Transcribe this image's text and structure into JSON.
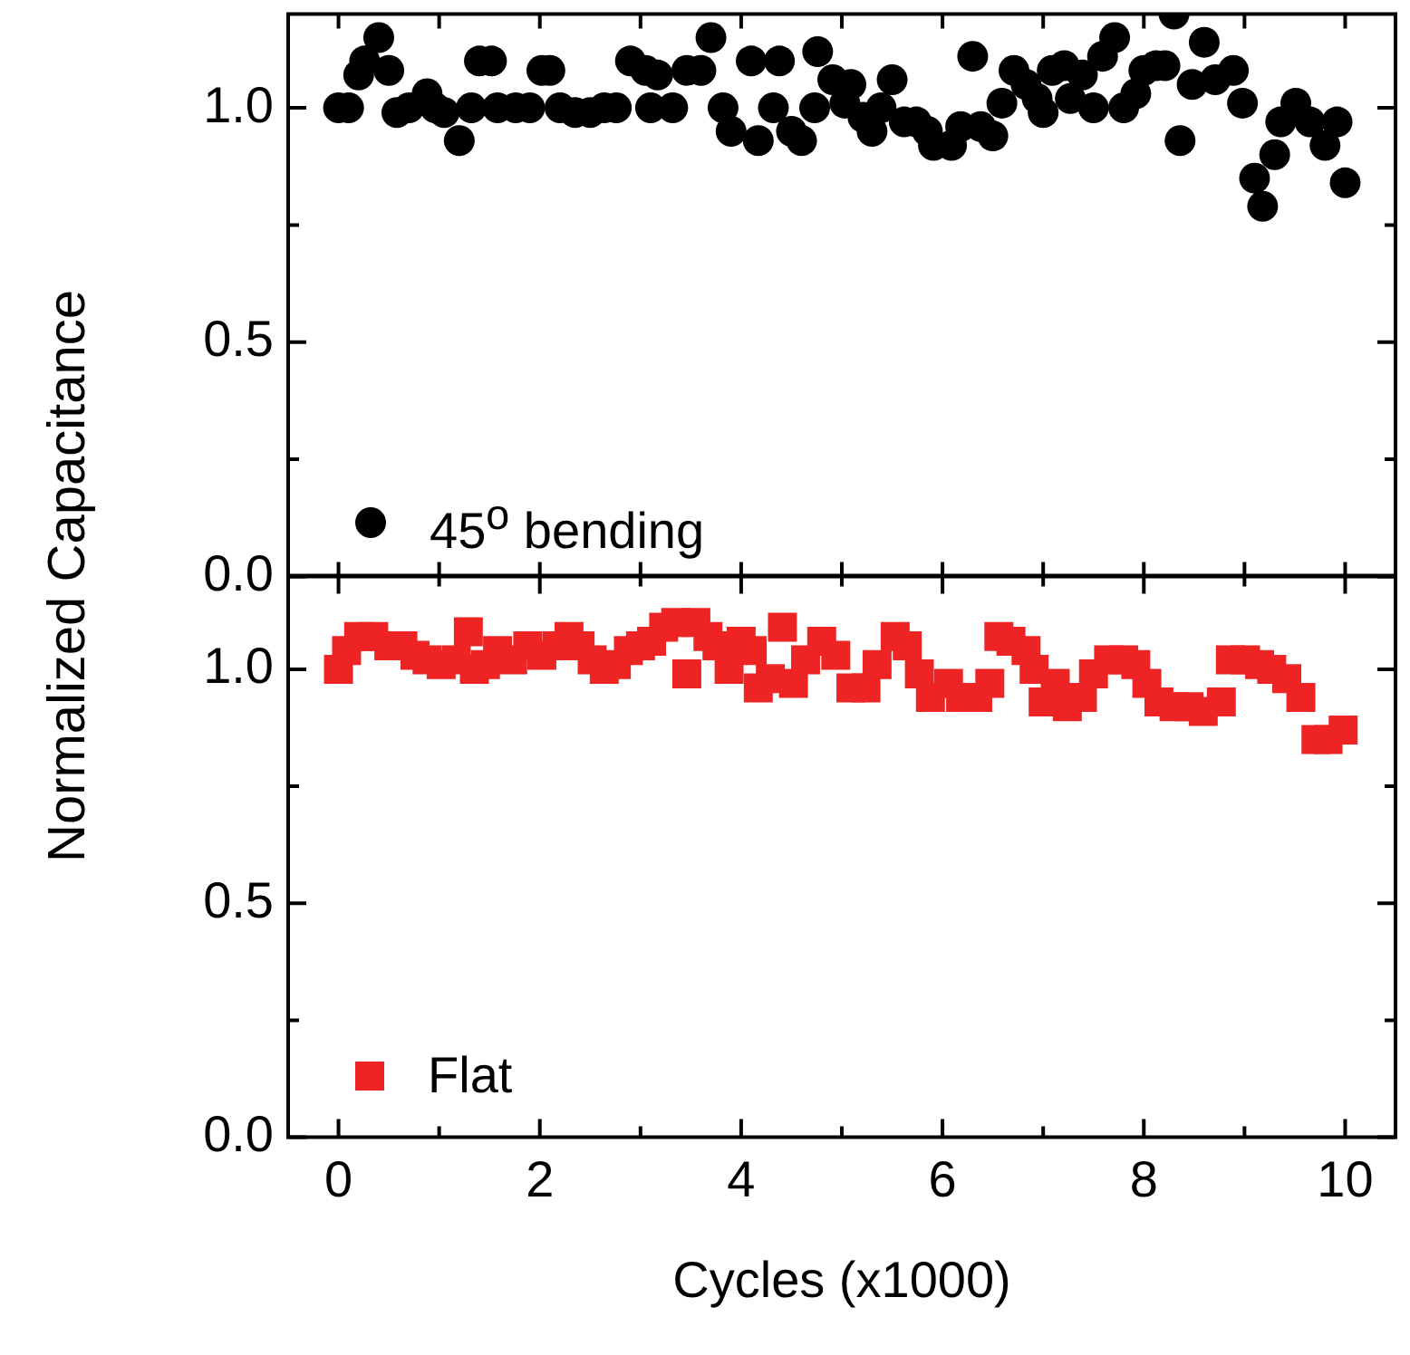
{
  "chart_data": [
    {
      "type": "scatter",
      "ylabel": "Normalized Capacitance",
      "marker": "circle",
      "legend": "bottom left",
      "tick_labels": "y",
      "xlim": [
        -0.5,
        10.5
      ],
      "ylim": [
        0,
        1.2
      ],
      "xticks": [
        {
          "value": 0,
          "label": null
        },
        {
          "value": 1,
          "label": null
        },
        {
          "value": 2,
          "label": null
        },
        {
          "value": 3,
          "label": null
        },
        {
          "value": 4,
          "label": null
        },
        {
          "value": 5,
          "label": null
        },
        {
          "value": 6,
          "label": null
        },
        {
          "value": 7,
          "label": null
        },
        {
          "value": 8,
          "label": null
        },
        {
          "value": 9,
          "label": null
        },
        {
          "value": 10,
          "label": null
        }
      ],
      "yticks": [
        {
          "value": 0,
          "label": "0.0"
        },
        {
          "value": 0.25,
          "label": null
        },
        {
          "value": 0.5,
          "label": "0.5"
        },
        {
          "value": 0.75,
          "label": null
        },
        {
          "value": 1,
          "label": "1.0"
        }
      ],
      "x": [
        0,
        0.1,
        0.2,
        0.26,
        0.4,
        0.5,
        0.58,
        0.7,
        0.88,
        0.96,
        1.05,
        1.2,
        1.32,
        1.4,
        1.52,
        1.58,
        1.76,
        1.9,
        2.02,
        2.1,
        2.2,
        2.35,
        2.5,
        2.64,
        2.76,
        2.9,
        3.05,
        3.1,
        3.17,
        3.32,
        3.46,
        3.6,
        3.7,
        3.82,
        3.9,
        4.1,
        4.17,
        4.32,
        4.38,
        4.5,
        4.6,
        4.73,
        4.76,
        4.91,
        5.03,
        5.09,
        5.21,
        5.3,
        5.39,
        5.5,
        5.62,
        5.74,
        5.85,
        5.91,
        6.09,
        6.18,
        6.3,
        6.38,
        6.5,
        6.59,
        6.71,
        6.83,
        6.94,
        7.0,
        7.09,
        7.21,
        7.27,
        7.39,
        7.5,
        7.59,
        7.71,
        7.8,
        7.92,
        8.0,
        8.12,
        8.21,
        8.3,
        8.36,
        8.48,
        8.6,
        8.71,
        8.89,
        8.98,
        9.1,
        9.18,
        9.3,
        9.36,
        9.51,
        9.65,
        9.8,
        9.92,
        10.0
      ],
      "series": [
        {
          "name": "45$^{o}$ bending",
          "color": "#000000",
          "values": [
            1.0,
            1.0,
            1.07,
            1.1,
            1.15,
            1.08,
            0.99,
            1.0,
            1.03,
            1.0,
            0.99,
            0.93,
            1.0,
            1.1,
            1.1,
            1.0,
            1.0,
            1.0,
            1.08,
            1.08,
            1.0,
            0.99,
            0.99,
            1.0,
            1.0,
            1.1,
            1.08,
            1.0,
            1.07,
            1.0,
            1.08,
            1.08,
            1.15,
            1.0,
            0.95,
            1.1,
            0.93,
            1.0,
            1.1,
            0.95,
            0.93,
            1.0,
            1.12,
            1.06,
            1.01,
            1.05,
            0.98,
            0.95,
            1.0,
            1.06,
            0.97,
            0.97,
            0.95,
            0.92,
            0.92,
            0.96,
            1.11,
            0.96,
            0.94,
            1.01,
            1.08,
            1.05,
            1.02,
            0.99,
            1.08,
            1.09,
            1.02,
            1.07,
            1.0,
            1.11,
            1.15,
            1.0,
            1.03,
            1.08,
            1.09,
            1.09,
            1.2,
            0.93,
            1.05,
            1.14,
            1.06,
            1.08,
            1.01,
            0.85,
            0.79,
            0.9,
            0.97,
            1.01,
            0.97,
            0.92,
            0.97,
            0.84
          ]
        }
      ]
    },
    {
      "type": "scatter",
      "xlabel": "Cycles (x1000)",
      "marker": "square",
      "legend": "bottom left",
      "xlim": [
        -0.5,
        10.5
      ],
      "ylim": [
        0,
        1.2
      ],
      "xticks": [
        0,
        {
          "value": 1,
          "label": null
        },
        2,
        {
          "value": 3,
          "label": null
        },
        4,
        {
          "value": 5,
          "label": null
        },
        6,
        {
          "value": 7,
          "label": null
        },
        8,
        {
          "value": 9,
          "label": null
        },
        10
      ],
      "yticks": [
        {
          "value": 0,
          "label": "0.0"
        },
        {
          "value": 0.25,
          "label": null
        },
        {
          "value": 0.5,
          "label": "0.5"
        },
        {
          "value": 0.75,
          "label": null
        },
        {
          "value": 1,
          "label": "1.0"
        }
      ],
      "x": [
        0,
        0.08,
        0.2,
        0.35,
        0.5,
        0.64,
        0.76,
        0.88,
        1.02,
        1.17,
        1.29,
        1.35,
        1.46,
        1.58,
        1.73,
        1.88,
        2.02,
        2.17,
        2.29,
        2.4,
        2.52,
        2.64,
        2.76,
        2.88,
        3.0,
        3.11,
        3.23,
        3.35,
        3.46,
        3.55,
        3.67,
        3.76,
        3.88,
        4.0,
        4.11,
        4.17,
        4.29,
        4.41,
        4.52,
        4.64,
        4.8,
        4.94,
        5.09,
        5.24,
        5.35,
        5.53,
        5.65,
        5.77,
        5.88,
        6.06,
        6.18,
        6.35,
        6.47,
        6.56,
        6.68,
        6.83,
        6.91,
        7.0,
        7.12,
        7.24,
        7.39,
        7.5,
        7.65,
        7.8,
        7.92,
        8.03,
        8.15,
        8.3,
        8.45,
        8.59,
        8.77,
        8.86,
        9.01,
        9.15,
        9.27,
        9.42,
        9.56,
        9.71,
        9.83,
        9.98
      ],
      "series": [
        {
          "name": "Flat",
          "color": "#ee2424",
          "values": [
            1.0,
            1.04,
            1.07,
            1.07,
            1.05,
            1.05,
            1.03,
            1.02,
            1.01,
            1.02,
            1.08,
            1.0,
            1.01,
            1.04,
            1.02,
            1.05,
            1.03,
            1.05,
            1.07,
            1.05,
            1.02,
            1.0,
            1.01,
            1.04,
            1.05,
            1.06,
            1.09,
            1.1,
            0.99,
            1.1,
            1.07,
            1.05,
            1.0,
            1.06,
            1.04,
            0.96,
            0.98,
            1.09,
            0.97,
            1.02,
            1.06,
            1.03,
            0.96,
            0.96,
            1.01,
            1.07,
            1.05,
            0.99,
            0.94,
            0.97,
            0.94,
            0.94,
            0.97,
            1.07,
            1.06,
            1.04,
            1.0,
            0.93,
            0.97,
            0.92,
            0.94,
            0.99,
            1.02,
            1.02,
            1.01,
            0.97,
            0.93,
            0.92,
            0.92,
            0.91,
            0.93,
            1.02,
            1.02,
            1.01,
            1.0,
            0.98,
            0.94,
            0.85,
            0.85,
            0.87
          ]
        }
      ]
    }
  ]
}
